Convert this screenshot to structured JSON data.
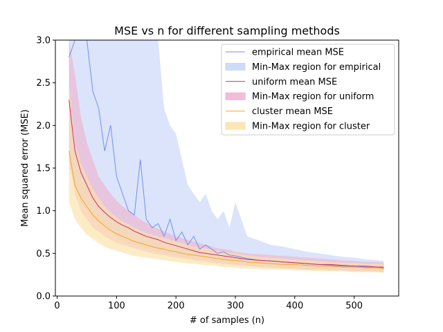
{
  "chart_data": {
    "type": "line",
    "title": "MSE vs n for different sampling methods",
    "xlabel": "# of samples (n)",
    "ylabel": "Mean squared error (MSE)",
    "xlim": [
      -3,
      575
    ],
    "ylim": [
      0,
      3.0
    ],
    "xticks": [
      0,
      100,
      200,
      300,
      400,
      500
    ],
    "yticks": [
      0.0,
      0.5,
      1.0,
      1.5,
      2.0,
      2.5,
      3.0
    ],
    "ytick_labels": [
      "0.0",
      "0.5",
      "1.0",
      "1.5",
      "2.0",
      "2.5",
      "3.0"
    ],
    "grid": false,
    "legend_placement": "top-right",
    "series": [
      {
        "name": "empirical mean MSE",
        "band_name": "Min-Max region for empirical",
        "color": "#6f8ff0",
        "band_color": "#c7d6f7",
        "x": [
          20,
          30,
          40,
          50,
          60,
          70,
          80,
          90,
          100,
          110,
          120,
          130,
          140,
          150,
          160,
          170,
          180,
          190,
          200,
          210,
          220,
          230,
          240,
          250,
          260,
          270,
          280,
          290,
          300,
          320,
          340,
          360,
          380,
          400,
          420,
          440,
          460,
          480,
          500,
          520,
          540,
          550
        ],
        "mean": [
          2.8,
          3.0,
          3.0,
          3.0,
          2.4,
          2.2,
          1.7,
          2.0,
          1.4,
          1.2,
          1.0,
          0.95,
          1.6,
          0.9,
          0.8,
          0.85,
          0.7,
          0.9,
          0.65,
          0.75,
          0.6,
          0.7,
          0.55,
          0.6,
          0.55,
          0.5,
          0.52,
          0.48,
          0.47,
          0.44,
          0.42,
          0.41,
          0.4,
          0.39,
          0.38,
          0.37,
          0.36,
          0.35,
          0.35,
          0.34,
          0.34,
          0.33
        ],
        "min": [
          1.5,
          1.3,
          1.1,
          1.0,
          0.9,
          0.85,
          0.8,
          0.75,
          0.7,
          0.65,
          0.62,
          0.6,
          0.58,
          0.56,
          0.54,
          0.52,
          0.5,
          0.48,
          0.47,
          0.46,
          0.45,
          0.44,
          0.43,
          0.42,
          0.41,
          0.4,
          0.39,
          0.38,
          0.37,
          0.36,
          0.35,
          0.34,
          0.33,
          0.32,
          0.31,
          0.31,
          0.3,
          0.3,
          0.29,
          0.29,
          0.28,
          0.28
        ],
        "max": [
          3.0,
          3.0,
          3.0,
          3.0,
          3.0,
          3.0,
          3.0,
          3.0,
          3.0,
          3.0,
          3.0,
          3.0,
          3.0,
          3.0,
          3.0,
          3.0,
          2.2,
          2.0,
          1.9,
          1.6,
          1.3,
          1.2,
          1.1,
          1.2,
          1.0,
          0.9,
          1.0,
          0.8,
          1.1,
          0.7,
          0.65,
          0.6,
          0.58,
          0.55,
          0.52,
          0.5,
          0.48,
          0.46,
          0.45,
          0.43,
          0.42,
          0.41
        ]
      },
      {
        "name": "uniform mean MSE",
        "band_name": "Min-Max region for uniform",
        "color": "#cc2a6e",
        "band_color": "#f0b3d0",
        "x": [
          20,
          30,
          40,
          50,
          60,
          70,
          80,
          90,
          100,
          110,
          120,
          130,
          140,
          150,
          160,
          170,
          180,
          190,
          200,
          210,
          220,
          230,
          240,
          250,
          260,
          270,
          280,
          290,
          300,
          320,
          340,
          360,
          380,
          400,
          420,
          440,
          460,
          480,
          500,
          520,
          540,
          550
        ],
        "mean": [
          2.3,
          1.7,
          1.45,
          1.3,
          1.15,
          1.05,
          0.98,
          0.92,
          0.87,
          0.83,
          0.8,
          0.76,
          0.73,
          0.7,
          0.68,
          0.66,
          0.63,
          0.61,
          0.59,
          0.57,
          0.55,
          0.53,
          0.51,
          0.5,
          0.49,
          0.48,
          0.47,
          0.46,
          0.45,
          0.43,
          0.42,
          0.41,
          0.4,
          0.39,
          0.38,
          0.37,
          0.37,
          0.36,
          0.35,
          0.35,
          0.34,
          0.34
        ],
        "min": [
          1.6,
          1.2,
          1.0,
          0.9,
          0.8,
          0.75,
          0.7,
          0.66,
          0.62,
          0.6,
          0.58,
          0.56,
          0.54,
          0.52,
          0.5,
          0.49,
          0.48,
          0.46,
          0.45,
          0.44,
          0.43,
          0.42,
          0.41,
          0.4,
          0.39,
          0.38,
          0.37,
          0.37,
          0.36,
          0.35,
          0.34,
          0.33,
          0.32,
          0.32,
          0.31,
          0.31,
          0.3,
          0.3,
          0.29,
          0.29,
          0.29,
          0.28
        ],
        "max": [
          3.0,
          2.6,
          2.1,
          1.8,
          1.6,
          1.4,
          1.3,
          1.2,
          1.12,
          1.05,
          1.0,
          0.95,
          0.9,
          0.86,
          0.82,
          0.79,
          0.76,
          0.73,
          0.7,
          0.68,
          0.66,
          0.64,
          0.62,
          0.6,
          0.58,
          0.56,
          0.55,
          0.54,
          0.52,
          0.5,
          0.49,
          0.48,
          0.47,
          0.46,
          0.45,
          0.44,
          0.43,
          0.42,
          0.41,
          0.4,
          0.4,
          0.39
        ]
      },
      {
        "name": "cluster mean MSE",
        "band_name": "Min-Max region for cluster",
        "color": "#f5a623",
        "band_color": "#fbe2a8",
        "x": [
          20,
          30,
          40,
          50,
          60,
          70,
          80,
          90,
          100,
          110,
          120,
          130,
          140,
          150,
          160,
          170,
          180,
          190,
          200,
          210,
          220,
          230,
          240,
          250,
          260,
          270,
          280,
          290,
          300,
          320,
          340,
          360,
          380,
          400,
          420,
          440,
          460,
          480,
          500,
          520,
          540,
          550
        ],
        "mean": [
          1.7,
          1.3,
          1.15,
          1.05,
          0.95,
          0.88,
          0.82,
          0.77,
          0.73,
          0.7,
          0.67,
          0.64,
          0.62,
          0.6,
          0.58,
          0.56,
          0.55,
          0.53,
          0.52,
          0.5,
          0.49,
          0.48,
          0.47,
          0.46,
          0.45,
          0.44,
          0.43,
          0.42,
          0.42,
          0.4,
          0.39,
          0.38,
          0.37,
          0.37,
          0.36,
          0.35,
          0.35,
          0.34,
          0.34,
          0.33,
          0.33,
          0.32
        ],
        "min": [
          1.1,
          0.9,
          0.8,
          0.72,
          0.67,
          0.62,
          0.58,
          0.55,
          0.53,
          0.51,
          0.49,
          0.47,
          0.46,
          0.45,
          0.44,
          0.43,
          0.42,
          0.41,
          0.4,
          0.39,
          0.38,
          0.38,
          0.37,
          0.36,
          0.36,
          0.35,
          0.34,
          0.34,
          0.33,
          0.32,
          0.32,
          0.31,
          0.31,
          0.3,
          0.3,
          0.29,
          0.29,
          0.29,
          0.28,
          0.28,
          0.28,
          0.27
        ],
        "max": [
          2.5,
          1.8,
          1.55,
          1.4,
          1.25,
          1.15,
          1.05,
          0.98,
          0.92,
          0.88,
          0.84,
          0.8,
          0.77,
          0.74,
          0.72,
          0.7,
          0.68,
          0.66,
          0.64,
          0.62,
          0.6,
          0.58,
          0.57,
          0.56,
          0.54,
          0.53,
          0.52,
          0.51,
          0.5,
          0.48,
          0.46,
          0.45,
          0.44,
          0.43,
          0.42,
          0.41,
          0.4,
          0.39,
          0.39,
          0.38,
          0.38,
          0.37
        ]
      }
    ]
  }
}
